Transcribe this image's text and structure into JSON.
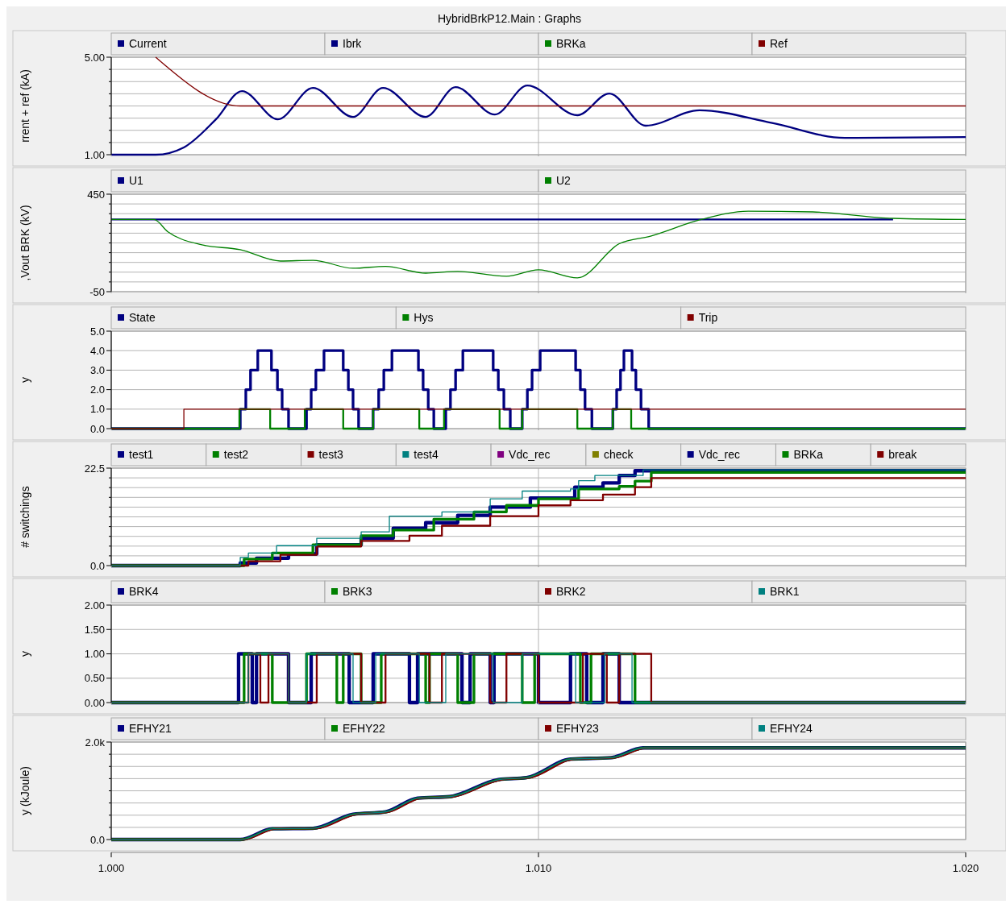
{
  "chart_data": [
    {
      "type": "line",
      "title": "HybridBrkP12.Main : Graphs",
      "ylabel": "rrent + ref (kA)",
      "legend": "top",
      "grid": true,
      "tick_labels": "y",
      "xlim": [
        1.0,
        1.02
      ],
      "xticks": [
        {
          "value": 1.0,
          "label": null
        },
        {
          "value": 1.01,
          "label": null
        },
        {
          "value": 1.02,
          "label": null
        }
      ],
      "ylim": [
        1,
        5
      ],
      "yticks": [
        {
          "value": 1,
          "label": "1.00"
        },
        {
          "value": 1.5,
          "label": null
        },
        {
          "value": 2,
          "label": null
        },
        {
          "value": 2.5,
          "label": null
        },
        {
          "value": 3,
          "label": null
        },
        {
          "value": 3.5,
          "label": null
        },
        {
          "value": 4,
          "label": null
        },
        {
          "value": 4.5,
          "label": null
        },
        {
          "value": 5,
          "label": "5.00"
        }
      ],
      "series": [
        {
          "name": "Current",
          "color": "#000080",
          "x": [
            1.0,
            1.00104,
            1.0017,
            1.00245,
            1.00306,
            1.0039,
            1.00472,
            1.00566,
            1.00636,
            1.00736,
            1.00806,
            1.00898,
            1.00974,
            1.01091,
            1.01166,
            1.01251,
            1.01377,
            1.01547,
            1.01717,
            1.02
          ],
          "values": [
            1.0,
            1.0,
            1.3,
            2.45,
            3.61,
            2.45,
            3.74,
            2.55,
            3.74,
            2.55,
            3.77,
            2.65,
            3.84,
            2.62,
            3.51,
            2.19,
            2.82,
            2.3,
            1.69,
            1.72
          ]
        },
        {
          "name": "Ibrk",
          "color": "#000080"
        },
        {
          "name": "BRKa",
          "color": "#008000"
        },
        {
          "name": "Ref",
          "color": "#800000",
          "x": [
            1.00104,
            1.00302,
            1.02
          ],
          "values": [
            5.0,
            3.0,
            3.0
          ]
        }
      ]
    },
    {
      "type": "line",
      "ylabel": ",Vout BRK (kV)",
      "legend": "top",
      "grid": true,
      "tick_labels": "y",
      "xlim": [
        1.0,
        1.02
      ],
      "xticks": [
        {
          "value": 1.0,
          "label": null
        },
        {
          "value": 1.01,
          "label": null
        },
        {
          "value": 1.02,
          "label": null
        }
      ],
      "ylim": [
        -50,
        450
      ],
      "yticks": [
        {
          "value": -50,
          "label": "-50"
        },
        {
          "value": 0,
          "label": null
        },
        {
          "value": 50,
          "label": null
        },
        {
          "value": 100,
          "label": null
        },
        {
          "value": 150,
          "label": null
        },
        {
          "value": 200,
          "label": null
        },
        {
          "value": 250,
          "label": null
        },
        {
          "value": 300,
          "label": null
        },
        {
          "value": 350,
          "label": null
        },
        {
          "value": 400,
          "label": null
        },
        {
          "value": 450,
          "label": "450"
        }
      ],
      "series": [
        {
          "name": "U1",
          "color": "#000080",
          "x": [
            1.0,
            1.0183
          ],
          "values": [
            320,
            320
          ]
        },
        {
          "name": "U2",
          "color": "#008000",
          "x": [
            1.0,
            1.001,
            1.00132,
            1.00208,
            1.00302,
            1.00396,
            1.00472,
            1.00566,
            1.00642,
            1.00736,
            1.00811,
            1.00925,
            1.01,
            1.01091,
            1.01189,
            1.01264,
            1.01377,
            1.01491,
            1.01642,
            1.0183,
            1.02
          ],
          "values": [
            320,
            320,
            258,
            192,
            165,
            107,
            111,
            70,
            80,
            45,
            54,
            29,
            62,
            21,
            196,
            236,
            318,
            363,
            359,
            326,
            320
          ]
        }
      ]
    },
    {
      "type": "step",
      "ylabel": "y",
      "legend": "top",
      "grid": true,
      "tick_labels": "y",
      "xlim": [
        1.0,
        1.02
      ],
      "xticks": [
        {
          "value": 1.0,
          "label": null
        },
        {
          "value": 1.01,
          "label": null
        },
        {
          "value": 1.02,
          "label": null
        }
      ],
      "ylim": [
        0,
        5
      ],
      "yticks": [
        {
          "value": 0,
          "label": "0.0"
        },
        {
          "value": 1,
          "label": "1.0"
        },
        {
          "value": 2,
          "label": "2.0"
        },
        {
          "value": 3,
          "label": "3.0"
        },
        {
          "value": 4,
          "label": "4.0"
        },
        {
          "value": 5,
          "label": "5.0"
        }
      ],
      "series": [
        {
          "name": "State",
          "color": "#000080",
          "x": [
            1.0,
            1.00302,
            1.00315,
            1.00326,
            1.00343,
            1.00375,
            1.00389,
            1.004,
            1.00415,
            1.00457,
            1.00468,
            1.00479,
            1.00498,
            1.00543,
            1.00555,
            1.00566,
            1.00579,
            1.00613,
            1.00626,
            1.00638,
            1.00657,
            1.00719,
            1.0073,
            1.00742,
            1.00755,
            1.00783,
            1.00794,
            1.00806,
            1.00823,
            1.00894,
            1.00906,
            1.00919,
            1.00934,
            1.00962,
            1.00974,
            1.00985,
            1.01004,
            1.01087,
            1.01098,
            1.01109,
            1.01125,
            1.01174,
            1.01183,
            1.01192,
            1.012,
            1.01219,
            1.01228,
            1.0124,
            1.01258,
            1.02
          ],
          "values": [
            0,
            1,
            2,
            3,
            4,
            3,
            2,
            1,
            0,
            1,
            2,
            3,
            4,
            3,
            2,
            1,
            0,
            1,
            2,
            3,
            4,
            3,
            2,
            1,
            0,
            1,
            2,
            3,
            4,
            3,
            2,
            1,
            0,
            1,
            2,
            3,
            4,
            3,
            2,
            1,
            0,
            1,
            2,
            3,
            4,
            3,
            2,
            1,
            0,
            0
          ]
        },
        {
          "name": "Hys",
          "color": "#008000",
          "x": [
            1.0,
            1.003,
            1.00372,
            1.00453,
            1.00543,
            1.00613,
            1.00721,
            1.00779,
            1.00909,
            1.00962,
            1.01091,
            1.01174,
            1.01217,
            1.02
          ],
          "values": [
            0,
            1,
            0,
            1,
            0,
            1,
            0,
            1,
            0,
            1,
            0,
            1,
            0,
            0
          ]
        },
        {
          "name": "Trip",
          "color": "#800000",
          "x": [
            1.0,
            1.0017,
            1.02
          ],
          "values": [
            0,
            1,
            1
          ]
        }
      ]
    },
    {
      "type": "step",
      "ylabel": "# switchings",
      "legend": "top",
      "grid": true,
      "tick_labels": "y",
      "xlim": [
        1.0,
        1.02
      ],
      "xticks": [
        {
          "value": 1.0,
          "label": null
        },
        {
          "value": 1.01,
          "label": null
        },
        {
          "value": 1.02,
          "label": null
        }
      ],
      "ylim": [
        0,
        22.5
      ],
      "yticks": [
        {
          "value": 0,
          "label": "0.0"
        },
        {
          "value": 2.25,
          "label": null
        },
        {
          "value": 4.5,
          "label": null
        },
        {
          "value": 6.75,
          "label": null
        },
        {
          "value": 9,
          "label": null
        },
        {
          "value": 11.25,
          "label": null
        },
        {
          "value": 13.5,
          "label": null
        },
        {
          "value": 15.75,
          "label": null
        },
        {
          "value": 18,
          "label": null
        },
        {
          "value": 20.25,
          "label": null
        },
        {
          "value": 22.5,
          "label": "22.5"
        }
      ],
      "series": [
        {
          "name": "test1",
          "color": "#000080",
          "x": [
            1.0,
            1.00302,
            1.0034,
            1.00415,
            1.00481,
            1.00585,
            1.0066,
            1.00736,
            1.00811,
            1.00887,
            1.00981,
            1.01085,
            1.01151,
            1.01189,
            1.01226,
            1.02
          ],
          "values": [
            0,
            0.6,
            1.7,
            2.7,
            4.8,
            6.3,
            8.6,
            9.9,
            11.6,
            13.5,
            15.6,
            18.1,
            19.1,
            20.8,
            21.9,
            21.9
          ]
        },
        {
          "name": "test2",
          "color": "#008000",
          "x": [
            1.0,
            1.00311,
            1.00377,
            1.00472,
            1.00585,
            1.0066,
            1.00755,
            1.00849,
            1.00925,
            1.01,
            1.01094,
            1.01189,
            1.01226,
            1.01264,
            1.02
          ],
          "values": [
            0,
            1.5,
            2.9,
            4.8,
            6.9,
            8.2,
            10.7,
            12.4,
            13.9,
            15.4,
            17.7,
            18.3,
            19.5,
            21.5,
            21.5
          ]
        },
        {
          "name": "test3",
          "color": "#800000",
          "x": [
            1.0,
            1.00321,
            1.00396,
            1.00481,
            1.00585,
            1.00698,
            1.00774,
            1.00887,
            1.01,
            1.01075,
            1.01151,
            1.01226,
            1.01264,
            1.02
          ],
          "values": [
            0,
            1.0,
            2.5,
            4.4,
            5.7,
            6.9,
            9.2,
            11.4,
            13.9,
            15.1,
            16.4,
            18.1,
            20.2,
            20.2
          ]
        },
        {
          "name": "test4",
          "color": "#008080",
          "x": [
            1.0,
            1.00302,
            1.00321,
            1.00387,
            1.00481,
            1.00585,
            1.00651,
            1.00774,
            1.00887,
            1.00962,
            1.01075,
            1.01094,
            1.01132,
            1.01245,
            1.02
          ],
          "values": [
            0,
            1.9,
            2.9,
            4.6,
            6.3,
            7.8,
            11.4,
            12.4,
            15.4,
            17.2,
            17.7,
            19.6,
            20.8,
            22.1,
            22.1
          ]
        },
        {
          "name": "Vdc_rec",
          "color": "#800080"
        },
        {
          "name": "check",
          "color": "#808000"
        },
        {
          "name": "Vdc_rec",
          "color": "#000080"
        },
        {
          "name": "BRKa",
          "color": "#008000"
        },
        {
          "name": "break",
          "color": "#800000"
        }
      ]
    },
    {
      "type": "step",
      "ylabel": "y",
      "legend": "top",
      "grid": true,
      "tick_labels": "y",
      "xlim": [
        1.0,
        1.02
      ],
      "xticks": [
        {
          "value": 1.0,
          "label": null
        },
        {
          "value": 1.01,
          "label": null
        },
        {
          "value": 1.02,
          "label": null
        }
      ],
      "ylim": [
        0,
        2
      ],
      "yticks": [
        {
          "value": 0,
          "label": "0.00"
        },
        {
          "value": 0.5,
          "label": "0.50"
        },
        {
          "value": 1,
          "label": "1.00"
        },
        {
          "value": 1.5,
          "label": "1.50"
        },
        {
          "value": 2,
          "label": "2.00"
        }
      ],
      "series": [
        {
          "name": "BRK4",
          "color": "#000080",
          "x": [
            1.0,
            1.00298,
            1.0033,
            1.0034,
            1.00415,
            1.00468,
            1.00557,
            1.00613,
            1.00698,
            1.00717,
            1.00821,
            1.0084,
            1.00887,
            1.00896,
            1.01,
            1.01075,
            1.01113,
            1.01151,
            1.01189,
            1.02
          ],
          "values": [
            0,
            1,
            0,
            1,
            0,
            1,
            0,
            1,
            0,
            1,
            0,
            1,
            0,
            1,
            0,
            1,
            0,
            1,
            0,
            0
          ]
        },
        {
          "name": "BRK3",
          "color": "#008000",
          "x": [
            1.0,
            1.00311,
            1.00377,
            1.00457,
            1.00528,
            1.00543,
            1.00585,
            1.00632,
            1.00736,
            1.00745,
            1.00811,
            1.00849,
            1.00962,
            1.00991,
            1.01098,
            1.01123,
            1.01226,
            1.02
          ],
          "values": [
            0,
            1,
            0,
            1,
            0,
            1,
            0,
            1,
            0,
            1,
            0,
            1,
            0,
            1,
            0,
            1,
            0,
            0
          ]
        },
        {
          "name": "BRK2",
          "color": "#800000",
          "x": [
            1.0,
            1.00321,
            1.00349,
            1.00368,
            1.00415,
            1.00481,
            1.00585,
            1.00642,
            1.00745,
            1.00774,
            1.00887,
            1.00925,
            1.01,
            1.01104,
            1.0116,
            1.01189,
            1.01264,
            1.02
          ],
          "values": [
            0,
            1,
            0,
            1,
            0,
            1,
            0,
            1,
            0,
            1,
            0,
            1,
            0,
            1,
            0,
            1,
            0,
            0
          ]
        },
        {
          "name": "BRK1",
          "color": "#008080",
          "x": [
            1.0,
            1.00321,
            1.00415,
            1.00457,
            1.00566,
            1.00619,
            1.00721,
            1.00783,
            1.00894,
            1.00962,
            1.01087,
            1.01155,
            1.01219,
            1.02
          ],
          "values": [
            0,
            1,
            0,
            1,
            0,
            1,
            0,
            1,
            0,
            1,
            0,
            1,
            0,
            0
          ]
        }
      ]
    },
    {
      "type": "line",
      "ylabel": "y (kJoule)",
      "legend": "top",
      "grid": true,
      "xlim": [
        1.0,
        1.02
      ],
      "xticks": [
        {
          "value": 1.0,
          "label": "1.000"
        },
        {
          "value": 1.01,
          "label": "1.010"
        },
        {
          "value": 1.02,
          "label": "1.020"
        }
      ],
      "ylim": [
        0,
        2000
      ],
      "yticks": [
        {
          "value": 0,
          "label": "0.0"
        },
        {
          "value": 250,
          "label": null
        },
        {
          "value": 500,
          "label": null
        },
        {
          "value": 750,
          "label": null
        },
        {
          "value": 1000,
          "label": null
        },
        {
          "value": 1250,
          "label": null
        },
        {
          "value": 1500,
          "label": null
        },
        {
          "value": 1750,
          "label": null
        },
        {
          "value": 2000,
          "label": "2.0k"
        }
      ],
      "series": [
        {
          "name": "EFHY21",
          "color": "#000080",
          "x": [
            1.0,
            1.00302,
            1.00377,
            1.00472,
            1.00566,
            1.00642,
            1.00717,
            1.00792,
            1.00906,
            1.00972,
            1.01075,
            1.0117,
            1.01245,
            1.02
          ],
          "values": [
            0,
            0,
            220,
            230,
            520,
            570,
            850,
            880,
            1230,
            1270,
            1650,
            1680,
            1880,
            1880
          ]
        },
        {
          "name": "EFHY22",
          "color": "#008000",
          "x": [
            1.0,
            1.00306,
            1.00381,
            1.00476,
            1.0057,
            1.00646,
            1.00721,
            1.00796,
            1.0091,
            1.00976,
            1.01079,
            1.01174,
            1.01249,
            1.02
          ],
          "values": [
            0,
            0,
            220,
            230,
            520,
            570,
            850,
            880,
            1230,
            1270,
            1650,
            1680,
            1880,
            1880
          ]
        },
        {
          "name": "EFHY23",
          "color": "#800000",
          "x": [
            1.0,
            1.0031,
            1.00385,
            1.0048,
            1.00574,
            1.0065,
            1.00725,
            1.008,
            1.00914,
            1.0098,
            1.01083,
            1.01178,
            1.01253,
            1.02
          ],
          "values": [
            0,
            0,
            220,
            230,
            520,
            570,
            850,
            880,
            1230,
            1270,
            1650,
            1680,
            1880,
            1880
          ]
        },
        {
          "name": "EFHY24",
          "color": "#008080",
          "x": [
            1.0,
            1.00304,
            1.00379,
            1.00474,
            1.00568,
            1.00644,
            1.00719,
            1.00794,
            1.00908,
            1.00974,
            1.01077,
            1.01172,
            1.01247,
            1.02
          ],
          "values": [
            0,
            0,
            220,
            230,
            520,
            570,
            850,
            880,
            1230,
            1270,
            1650,
            1680,
            1880,
            1880
          ]
        }
      ]
    }
  ]
}
